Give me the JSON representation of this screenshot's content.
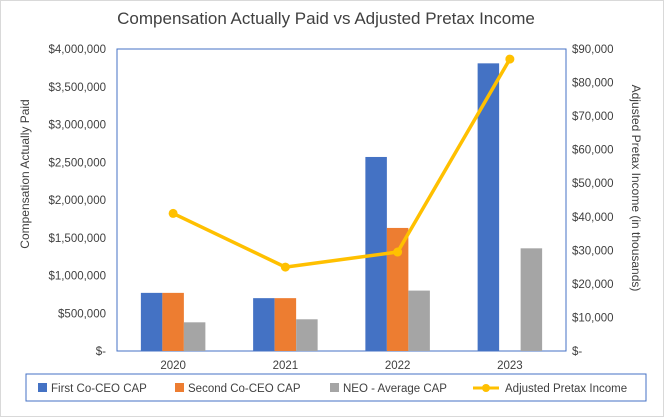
{
  "chart_data": {
    "type": "bar",
    "title": "Compensation Actually Paid vs Adjusted Pretax Income",
    "categories": [
      "2020",
      "2021",
      "2022",
      "2023"
    ],
    "y_left": {
      "label": "Compensation Actually Paid",
      "ylim": [
        0,
        4000000
      ],
      "ticks": [
        0,
        500000,
        1000000,
        1500000,
        2000000,
        2500000,
        3000000,
        3500000,
        4000000
      ],
      "tick_labels": [
        "$-",
        "$500,000",
        "$1,000,000",
        "$1,500,000",
        "$2,000,000",
        "$2,500,000",
        "$3,000,000",
        "$3,500,000",
        "$4,000,000"
      ]
    },
    "y_right": {
      "label": "Adjusted Pretax Income (in thousands)",
      "ylim": [
        0,
        90000
      ],
      "ticks": [
        0,
        10000,
        20000,
        30000,
        40000,
        50000,
        60000,
        70000,
        80000,
        90000
      ],
      "tick_labels": [
        "$-",
        "$10,000",
        "$20,000",
        "$30,000",
        "$40,000",
        "$50,000",
        "$60,000",
        "$70,000",
        "$80,000",
        "$90,000"
      ]
    },
    "series": [
      {
        "name": "First Co-CEO CAP",
        "type": "bar",
        "axis": "left",
        "color": "#4472C4",
        "values": [
          770000,
          700000,
          2570000,
          3810000
        ]
      },
      {
        "name": "Second Co-CEO CAP",
        "type": "bar",
        "axis": "left",
        "color": "#ED7D31",
        "values": [
          770000,
          700000,
          1630000,
          null
        ]
      },
      {
        "name": "NEO - Average CAP",
        "type": "bar",
        "axis": "left",
        "color": "#A5A5A5",
        "values": [
          380000,
          420000,
          800000,
          1360000
        ]
      },
      {
        "name": "Adjusted Pretax Income",
        "type": "line",
        "axis": "right",
        "color": "#FFC000",
        "values": [
          41000,
          25000,
          29500,
          87000
        ]
      }
    ],
    "legend_position": "bottom",
    "grid": false
  }
}
